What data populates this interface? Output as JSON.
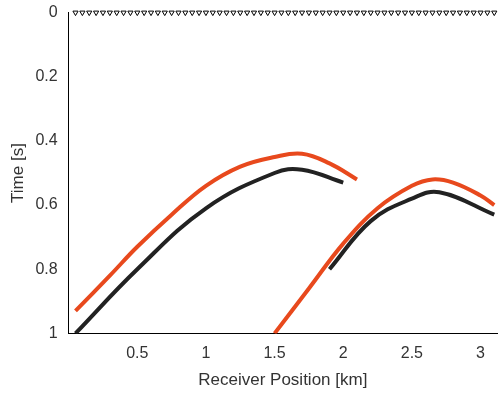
{
  "chart_data": {
    "type": "line",
    "x_label": "Receiver Position [km]",
    "y_label": "Time [s]",
    "xlim": [
      0,
      3.12
    ],
    "xticks": [
      0.5,
      1,
      1.5,
      2,
      2.5,
      3
    ],
    "ylim": [
      0,
      1
    ],
    "yticks": [
      0,
      0.2,
      0.4,
      0.6,
      0.8,
      1
    ],
    "y_reversed": true,
    "grid": false,
    "series": [
      {
        "type": "scatter",
        "marker": "triangle",
        "color": "#000000",
        "x": [
          0.05,
          0.1,
          0.15,
          0.2,
          0.25,
          0.3,
          0.35,
          0.4,
          0.45,
          0.5,
          0.55,
          0.6,
          0.65,
          0.7,
          0.75,
          0.8,
          0.85,
          0.9,
          0.95,
          1.0,
          1.05,
          1.1,
          1.15,
          1.2,
          1.25,
          1.3,
          1.35,
          1.4,
          1.45,
          1.5,
          1.55,
          1.6,
          1.65,
          1.7,
          1.75,
          1.8,
          1.85,
          1.9,
          1.95,
          2.0,
          2.05,
          2.1,
          2.15,
          2.2,
          2.25,
          2.3,
          2.35,
          2.4,
          2.45,
          2.5,
          2.55,
          2.6,
          2.65,
          2.7,
          2.75,
          2.8,
          2.85,
          2.9,
          2.95,
          3.0,
          3.05,
          3.1
        ],
        "values": [
          0,
          0,
          0,
          0,
          0,
          0,
          0,
          0,
          0,
          0,
          0,
          0,
          0,
          0,
          0,
          0,
          0,
          0,
          0,
          0,
          0,
          0,
          0,
          0,
          0,
          0,
          0,
          0,
          0,
          0,
          0,
          0,
          0,
          0,
          0,
          0,
          0,
          0,
          0,
          0,
          0,
          0,
          0,
          0,
          0,
          0,
          0,
          0,
          0,
          0,
          0,
          0,
          0,
          0,
          0,
          0,
          0,
          0,
          0,
          0,
          0,
          0
        ]
      },
      {
        "type": "line",
        "line_style": "solid",
        "color": "#e8491d",
        "x": [
          0.05,
          0.3,
          0.5,
          0.75,
          1.0,
          1.25,
          1.5,
          1.7,
          1.9,
          2.1
        ],
        "values": [
          0.93,
          0.82,
          0.73,
          0.63,
          0.54,
          0.48,
          0.45,
          0.44,
          0.47,
          0.52
        ]
      },
      {
        "type": "line",
        "line_style": "solid",
        "color": "#222222",
        "x": [
          0.05,
          0.5,
          1.0,
          1.5,
          1.7,
          2.0
        ],
        "values": [
          1.0,
          0.8,
          0.61,
          0.5,
          0.49,
          0.53
        ]
      },
      {
        "type": "line",
        "line_style": "solid",
        "color": "#e8491d",
        "x": [
          1.5,
          1.75,
          2.0,
          2.25,
          2.5,
          2.65,
          2.8,
          3.0,
          3.1
        ],
        "values": [
          1.0,
          0.86,
          0.72,
          0.61,
          0.54,
          0.52,
          0.53,
          0.57,
          0.6
        ]
      },
      {
        "type": "line",
        "line_style": "solid",
        "color": "#222222",
        "x": [
          1.9,
          2.2,
          2.5,
          2.7,
          3.1
        ],
        "values": [
          0.8,
          0.65,
          0.58,
          0.56,
          0.63
        ]
      }
    ]
  }
}
